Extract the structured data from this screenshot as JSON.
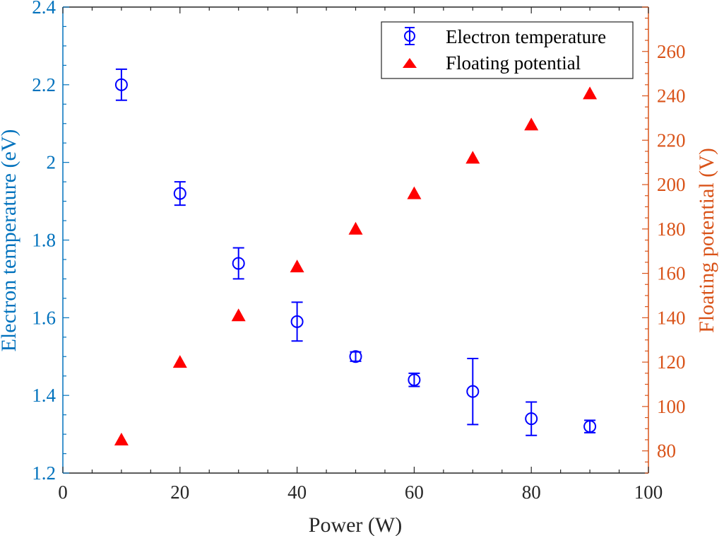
{
  "chart_data": {
    "type": "scatter",
    "title": "",
    "xlabel": "Power (W)",
    "ylabel": "Electron temperature (eV)",
    "ylabel_right": "Floating potential (V)",
    "xlim": [
      0,
      100
    ],
    "ylim": [
      1.2,
      2.4
    ],
    "ylim_right": [
      70,
      280
    ],
    "xticks": [
      "0",
      "20",
      "40",
      "60",
      "80",
      "100"
    ],
    "yticks": [
      "1.2",
      "1.4",
      "1.6",
      "1.8",
      "2",
      "2.2",
      "2.4"
    ],
    "yticks_right": [
      "80",
      "100",
      "120",
      "140",
      "160",
      "180",
      "200",
      "220",
      "240",
      "260"
    ],
    "grid": false,
    "legend_position": "upper right",
    "x": [
      10,
      20,
      30,
      40,
      50,
      60,
      70,
      80,
      90
    ],
    "series": [
      {
        "name": "Electron temperature",
        "axis": "left",
        "marker": "open-circle-errorbar",
        "color": "#0000FF",
        "values": [
          2.2,
          1.92,
          1.74,
          1.59,
          1.5,
          1.44,
          1.41,
          1.34,
          1.32
        ],
        "errors": [
          0.04,
          0.03,
          0.04,
          0.05,
          0.012,
          0.017,
          0.085,
          0.043,
          0.016
        ]
      },
      {
        "name": "Floating potential",
        "axis": "right",
        "marker": "filled-triangle",
        "color": "#FF0000",
        "values": [
          85,
          120,
          141,
          163,
          180,
          196,
          212,
          227,
          241
        ]
      }
    ]
  },
  "colors": {
    "left_axis": "#0072BD",
    "right_axis": "#D95319",
    "x_axis": "#262626"
  },
  "legend": {
    "items": [
      {
        "label": "Electron temperature"
      },
      {
        "label": "Floating potential"
      }
    ]
  }
}
